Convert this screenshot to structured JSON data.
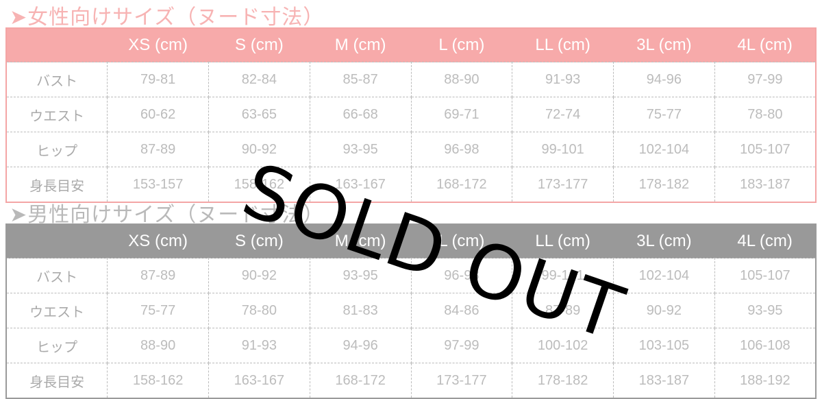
{
  "women": {
    "title": "➤女性向けサイズ（ヌード寸法）",
    "headers": [
      "",
      "XS (cm)",
      "S (cm)",
      "M (cm)",
      "L (cm)",
      "LL (cm)",
      "3L (cm)",
      "4L (cm)"
    ],
    "rows": [
      [
        "バスト",
        "79-81",
        "82-84",
        "85-87",
        "88-90",
        "91-93",
        "94-96",
        "97-99"
      ],
      [
        "ウエスト",
        "60-62",
        "63-65",
        "66-68",
        "69-71",
        "72-74",
        "75-77",
        "78-80"
      ],
      [
        "ヒップ",
        "87-89",
        "90-92",
        "93-95",
        "96-98",
        "99-101",
        "102-104",
        "105-107"
      ],
      [
        "身長目安",
        "153-157",
        "158-162",
        "163-167",
        "168-172",
        "173-177",
        "178-182",
        "183-187"
      ]
    ],
    "accent": "#f7aaaa"
  },
  "men": {
    "title": "➤男性向けサイズ（ヌード寸法）",
    "headers": [
      "",
      "XS (cm)",
      "S (cm)",
      "M (cm)",
      "L (cm)",
      "LL (cm)",
      "3L (cm)",
      "4L (cm)"
    ],
    "rows": [
      [
        "バスト",
        "87-89",
        "90-92",
        "93-95",
        "96-98",
        "99-101",
        "102-104",
        "105-107"
      ],
      [
        "ウエスト",
        "75-77",
        "78-80",
        "81-83",
        "84-86",
        "87-89",
        "90-92",
        "93-95"
      ],
      [
        "ヒップ",
        "88-90",
        "91-93",
        "94-96",
        "97-99",
        "100-102",
        "103-105",
        "106-108"
      ],
      [
        "身長目安",
        "158-162",
        "163-167",
        "168-172",
        "173-177",
        "178-182",
        "183-187",
        "188-192"
      ]
    ],
    "accent": "#999999"
  },
  "overlay": {
    "text": "SOLD OUT"
  }
}
